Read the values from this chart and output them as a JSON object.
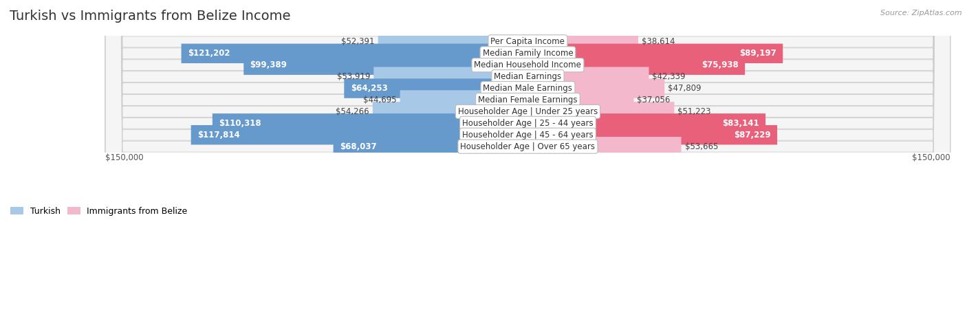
{
  "title": "Turkish vs Immigrants from Belize Income",
  "source": "Source: ZipAtlas.com",
  "categories": [
    "Per Capita Income",
    "Median Family Income",
    "Median Household Income",
    "Median Earnings",
    "Median Male Earnings",
    "Median Female Earnings",
    "Householder Age | Under 25 years",
    "Householder Age | 25 - 44 years",
    "Householder Age | 45 - 64 years",
    "Householder Age | Over 65 years"
  ],
  "turkish_values": [
    52391,
    121202,
    99389,
    53919,
    64253,
    44695,
    54266,
    110318,
    117814,
    68037
  ],
  "belize_values": [
    38614,
    89197,
    75938,
    42339,
    47809,
    37056,
    51223,
    83141,
    87229,
    53665
  ],
  "turkish_labels": [
    "$52,391",
    "$121,202",
    "$99,389",
    "$53,919",
    "$64,253",
    "$44,695",
    "$54,266",
    "$110,318",
    "$117,814",
    "$68,037"
  ],
  "belize_labels": [
    "$38,614",
    "$89,197",
    "$75,938",
    "$42,339",
    "$47,809",
    "$37,056",
    "$51,223",
    "$83,141",
    "$87,229",
    "$53,665"
  ],
  "turkish_color_light": "#a8c8e8",
  "turkish_color_dark": "#6699cc",
  "belize_color_light": "#f4b8cc",
  "belize_color_dark": "#e8607a",
  "max_value": 150000,
  "x_label_left": "$150,000",
  "x_label_right": "$150,000",
  "row_bg_color": "#f5f5f5",
  "background_color": "#ffffff",
  "title_fontsize": 14,
  "label_fontsize": 8.5,
  "category_fontsize": 8.5,
  "inside_label_threshold": 60000
}
